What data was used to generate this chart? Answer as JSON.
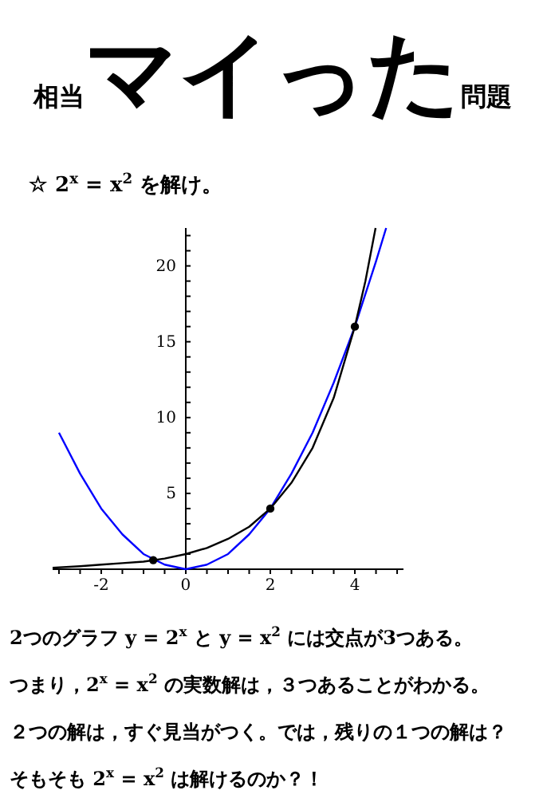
{
  "chart_data": {
    "type": "line",
    "title": "相当マイった問題",
    "subtitle": "☆ 2$^{x}$ = x$^{2}$ を解け。",
    "xlim": [
      -3.15,
      5.15
    ],
    "ylim": [
      0,
      22.5
    ],
    "xticks": [
      {
        "value": -3,
        "label": null
      },
      {
        "value": -2.5,
        "label": null
      },
      -2,
      {
        "value": -1.5,
        "label": null
      },
      {
        "value": -1,
        "label": null
      },
      {
        "value": -0.5,
        "label": null
      },
      0,
      {
        "value": 0.5,
        "label": null
      },
      {
        "value": 1,
        "label": null
      },
      {
        "value": 1.5,
        "label": null
      },
      2,
      {
        "value": 2.5,
        "label": null
      },
      {
        "value": 3,
        "label": null
      },
      {
        "value": 3.5,
        "label": null
      },
      4,
      {
        "value": 4.5,
        "label": null
      },
      {
        "value": 5,
        "label": null
      }
    ],
    "yticks": [
      {
        "value": 1,
        "label": null
      },
      {
        "value": 2,
        "label": null
      },
      {
        "value": 3,
        "label": null
      },
      {
        "value": 4,
        "label": null
      },
      5,
      {
        "value": 6,
        "label": null
      },
      {
        "value": 7,
        "label": null
      },
      {
        "value": 8,
        "label": null
      },
      {
        "value": 9,
        "label": null
      },
      10,
      {
        "value": 11,
        "label": null
      },
      {
        "value": 12,
        "label": null
      },
      {
        "value": 13,
        "label": null
      },
      {
        "value": 14,
        "label": null
      },
      15,
      {
        "value": 16,
        "label": null
      },
      {
        "value": 17,
        "label": null
      },
      {
        "value": 18,
        "label": null
      },
      {
        "value": 19,
        "label": null
      },
      20,
      {
        "value": 21,
        "label": null
      },
      {
        "value": 22,
        "label": null
      }
    ],
    "series": [
      {
        "color": "#0000ff",
        "x": [
          -3,
          -2.5,
          -2,
          -1.5,
          -1,
          -0.5,
          0,
          0.5,
          1,
          1.5,
          2,
          2.5,
          3,
          3.5,
          4,
          4.5,
          4.74
        ],
        "values": [
          9,
          6.3,
          4,
          2.3,
          1,
          0.3,
          0,
          0.3,
          1,
          2.3,
          4,
          6.3,
          9,
          12.3,
          16,
          20.3,
          22.5
        ]
      },
      {
        "color": "#000000",
        "x": [
          -3.15,
          -2.5,
          -2,
          -1.5,
          -1,
          -0.5,
          0,
          0.5,
          1,
          1.5,
          2,
          2.5,
          3,
          3.5,
          4,
          4.25,
          4.49
        ],
        "values": [
          0.1,
          0.2,
          0.3,
          0.4,
          0.5,
          0.7,
          1,
          1.4,
          2,
          2.8,
          4,
          5.7,
          8,
          11.3,
          16,
          19,
          22.5
        ]
      },
      {
        "type": "scatter",
        "color": "#000000",
        "x": [
          -0.77,
          2,
          4
        ],
        "values": [
          0.6,
          4,
          16
        ]
      }
    ],
    "annotations": [
      "2つのグラフ y = 2$^{x}$ と y = x$^{2}$ には交点が3つある。",
      "つまり，2$^{x}$ = x$^{2}$ の実数解は，３つあることがわかる。",
      "２つの解は，すぐ見当がつく。では，残りの１つの解は？",
      "そもそも 2$^{x}$ = x$^{2}$ は解けるのか？！"
    ]
  }
}
